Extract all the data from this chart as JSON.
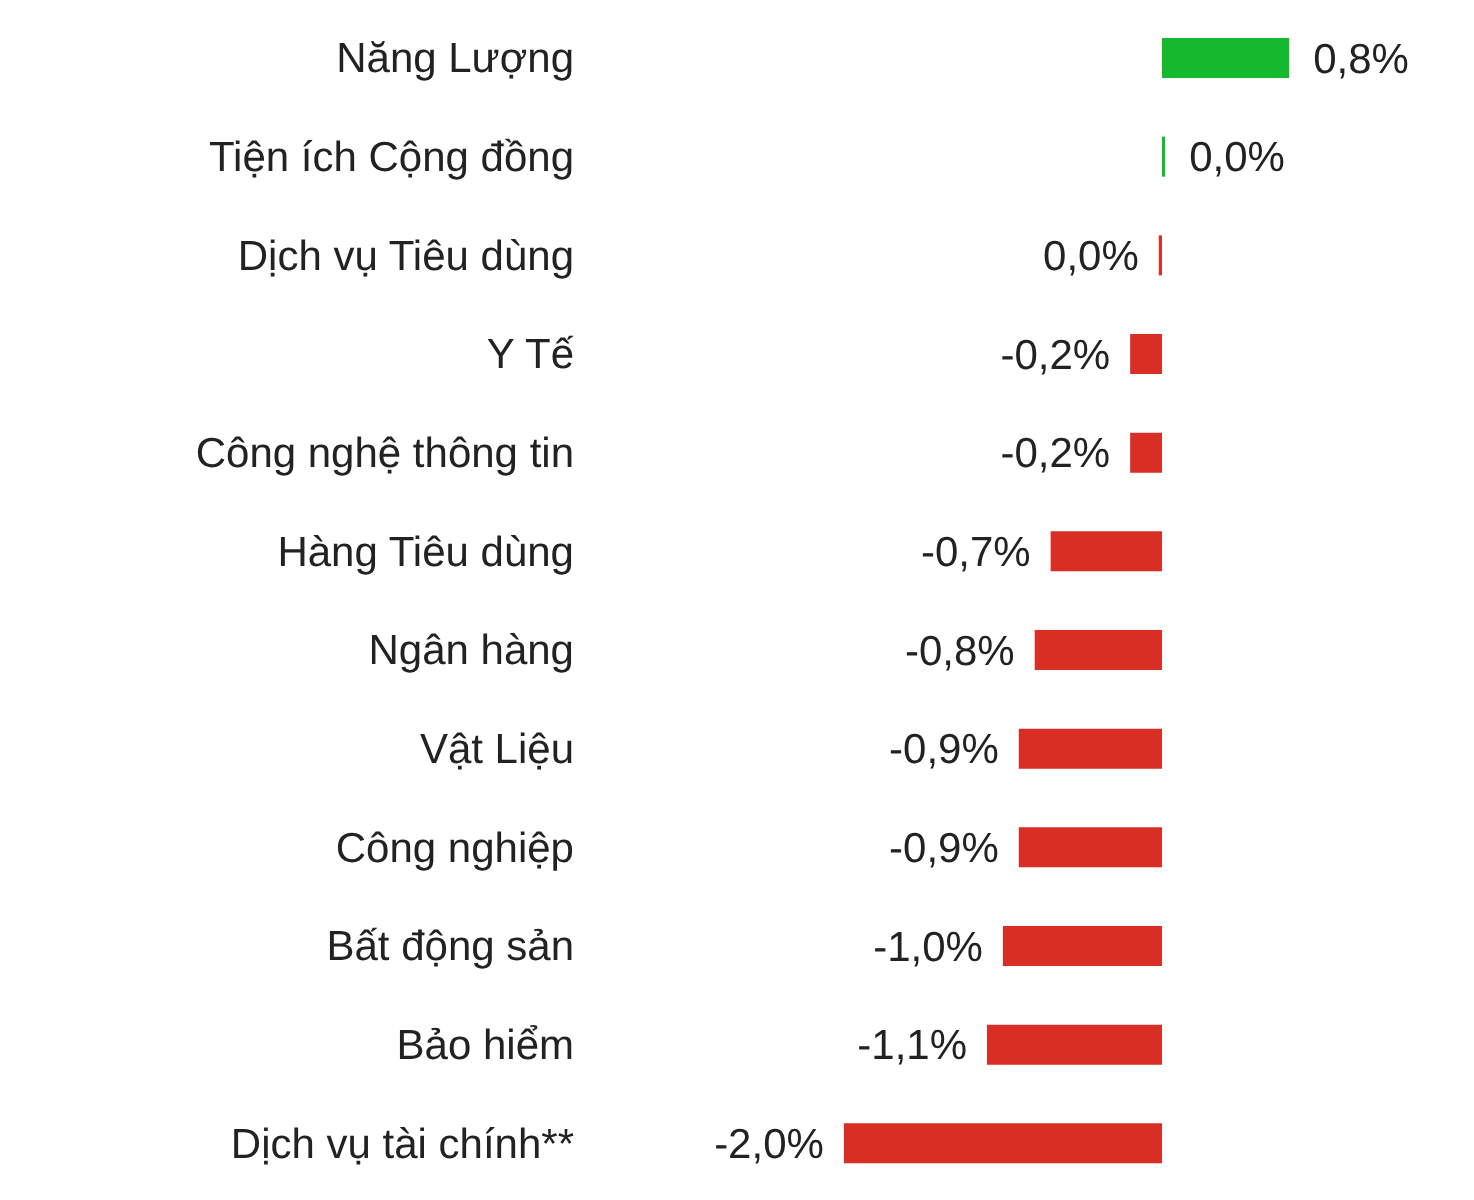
{
  "chart_data": {
    "type": "bar",
    "orientation": "horizontal",
    "categories": [
      "Năng Lượng",
      "Tiện ích Cộng đồng",
      "Dịch vụ Tiêu dùng",
      "Y Tế",
      "Công nghệ thông tin",
      "Hàng Tiêu dùng",
      "Ngân hàng",
      "Vật Liệu",
      "Công nghiệp",
      "Bất động sản",
      "Bảo hiểm",
      "Dịch vụ tài chính**"
    ],
    "values": [
      0.8,
      0.02,
      -0.02,
      -0.2,
      -0.2,
      -0.7,
      -0.8,
      -0.9,
      -0.9,
      -1.0,
      -1.1,
      -2.0
    ],
    "value_labels": [
      "0,8%",
      "0,0%",
      "0,0%",
      "-0,2%",
      "-0,2%",
      "-0,7%",
      "-0,8%",
      "-0,9%",
      "-0,9%",
      "-1,0%",
      "-1,1%",
      "-2,0%"
    ],
    "colors": [
      "#16b82e",
      "#16b82e",
      "#d92e24",
      "#d92e24",
      "#d92e24",
      "#d92e24",
      "#d92e24",
      "#d92e24",
      "#d92e24",
      "#d92e24",
      "#d92e24",
      "#d92e24"
    ],
    "grid": false,
    "legend": false
  }
}
